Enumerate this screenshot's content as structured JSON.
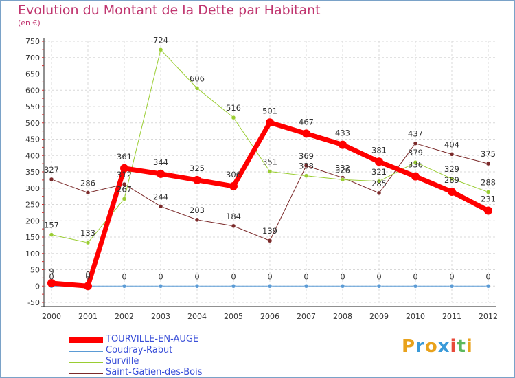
{
  "header": {
    "title": "Evolution du Montant de la Dette par Habitant",
    "unit": "(en €)"
  },
  "logo": {
    "text_parts": [
      "P",
      "r",
      "o",
      "x",
      "i",
      "t",
      "i"
    ],
    "colors": [
      "#e8a21c",
      "#3a9ad9",
      "#e8a21c",
      "#3a9ad9",
      "#e84a3a",
      "#5cb85c",
      "#e8a21c"
    ]
  },
  "chart_data": {
    "type": "line",
    "title": "Evolution du Montant de la Dette par Habitant",
    "ylabel": "(en €)",
    "xlabel": "",
    "categories": [
      "2000",
      "2001",
      "2002",
      "2003",
      "2004",
      "2005",
      "2006",
      "2007",
      "2008",
      "2009",
      "2010",
      "2011",
      "2012"
    ],
    "ylim": [
      -50,
      750
    ],
    "yticks": [
      "-50",
      "0",
      "50",
      "100",
      "150",
      "200",
      "250",
      "300",
      "350",
      "400",
      "450",
      "500",
      "550",
      "600",
      "650",
      "700",
      "750"
    ],
    "grid": true,
    "legend_position": "bottom-left",
    "series": [
      {
        "name": "TOURVILLE-EN-AUGE",
        "color": "#ff0000",
        "width": 7,
        "values": [
          9,
          0,
          361,
          344,
          325,
          306,
          501,
          467,
          433,
          381,
          336,
          289,
          231
        ],
        "labels": [
          "9",
          "0",
          "361",
          "344",
          "325",
          "306",
          "501",
          "467",
          "433",
          "381",
          "336",
          "289",
          "231"
        ]
      },
      {
        "name": "Coudray-Rabut",
        "color": "#5b9bd5",
        "width": 1,
        "values": [
          0,
          0,
          0,
          0,
          0,
          0,
          0,
          0,
          0,
          0,
          0,
          0,
          0
        ],
        "labels": [
          "0",
          "0",
          "0",
          "0",
          "0",
          "0",
          "0",
          "0",
          "0",
          "0",
          "0",
          "0",
          "0"
        ]
      },
      {
        "name": "Surville",
        "color": "#9acd32",
        "width": 1,
        "values": [
          157,
          133,
          267,
          724,
          606,
          516,
          351,
          338,
          326,
          321,
          379,
          329,
          288
        ],
        "labels": [
          "157",
          "133",
          "267",
          "724",
          "606",
          "516",
          "351",
          "338",
          "326",
          "321",
          "379",
          "329",
          "288"
        ]
      },
      {
        "name": "Saint-Gatien-des-Bois",
        "color": "#7b2a2a",
        "width": 1,
        "values": [
          327,
          286,
          312,
          244,
          203,
          184,
          139,
          369,
          332,
          285,
          437,
          404,
          375
        ],
        "labels": [
          "327",
          "286",
          "312",
          "244",
          "203",
          "184",
          "139",
          "369",
          "332",
          "285",
          "437",
          "404",
          "375"
        ]
      }
    ]
  }
}
